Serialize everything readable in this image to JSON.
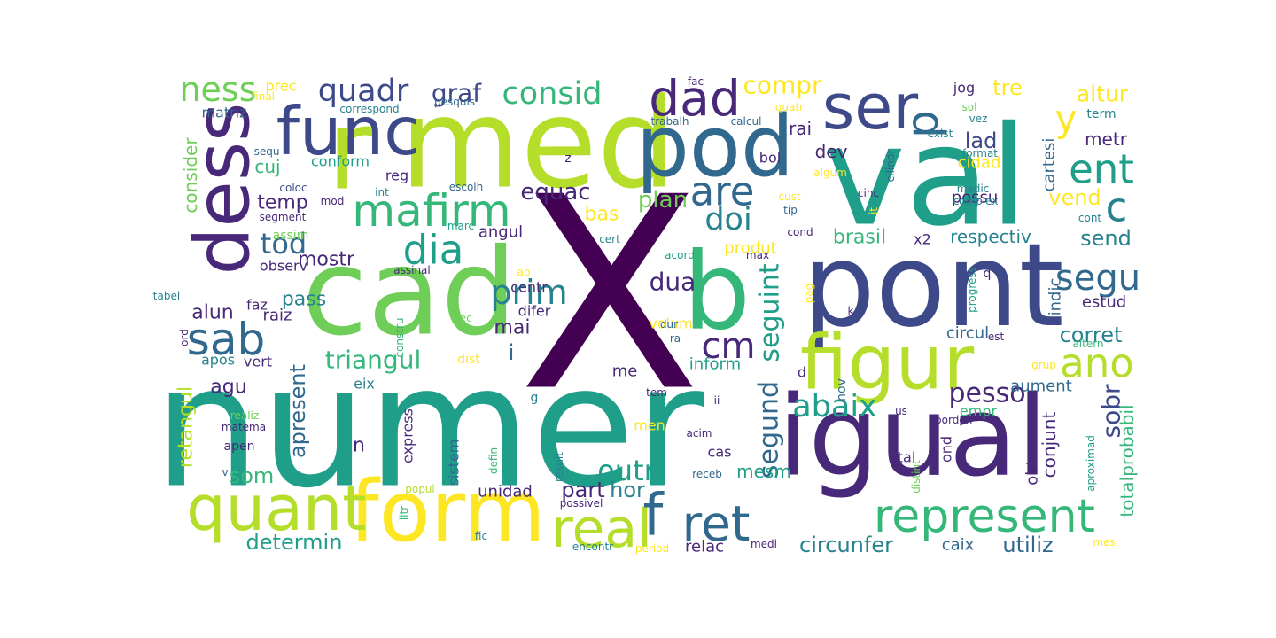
{
  "palette": {
    "purple": "#440154",
    "indigo": "#482878",
    "blue": "#3e4989",
    "steel": "#31688e",
    "teal": "#26828e",
    "green": "#1f9e89",
    "emerald": "#35b779",
    "lime": "#6ece58",
    "chartreuse": "#b5de2b",
    "yellow": "#fde725"
  },
  "words": [
    {
      "text": "X"
    },
    {
      "text": "numer"
    },
    {
      "text": "med"
    },
    {
      "text": "val"
    },
    {
      "text": "cad"
    },
    {
      "text": "pont"
    },
    {
      "text": "igual"
    },
    {
      "text": "pod"
    },
    {
      "text": "r"
    },
    {
      "text": "dess"
    },
    {
      "text": "form"
    },
    {
      "text": "b"
    },
    {
      "text": "func"
    },
    {
      "text": "quant"
    },
    {
      "text": "figur"
    },
    {
      "text": "ser"
    },
    {
      "text": "represent"
    },
    {
      "text": "mafirm"
    },
    {
      "text": "dad"
    },
    {
      "text": "real"
    },
    {
      "text": "ret"
    },
    {
      "text": "f"
    },
    {
      "text": "sab"
    },
    {
      "text": "are"
    },
    {
      "text": "ano"
    },
    {
      "text": "dia"
    },
    {
      "text": "cm"
    },
    {
      "text": "ent"
    },
    {
      "text": "p"
    },
    {
      "text": "segu"
    },
    {
      "text": "consid"
    },
    {
      "text": "prim"
    },
    {
      "text": "quadr"
    },
    {
      "text": "ness"
    },
    {
      "text": "doi"
    },
    {
      "text": "c"
    },
    {
      "text": "tod"
    },
    {
      "text": "y"
    },
    {
      "text": "abaix"
    },
    {
      "text": "triangul"
    },
    {
      "text": "graf"
    },
    {
      "text": "compr"
    },
    {
      "text": "altur"
    },
    {
      "text": "tre"
    },
    {
      "text": "pesso"
    },
    {
      "text": "seguint"
    },
    {
      "text": "segund"
    },
    {
      "text": "dua"
    },
    {
      "text": "equac"
    },
    {
      "text": "plan"
    },
    {
      "text": "corret"
    },
    {
      "text": "outr"
    },
    {
      "text": "determin"
    },
    {
      "text": "circunfer"
    },
    {
      "text": "utiliz"
    },
    {
      "text": "sobr"
    },
    {
      "text": "lad"
    },
    {
      "text": "metr"
    },
    {
      "text": "send"
    },
    {
      "text": "brasil"
    },
    {
      "text": "consider"
    },
    {
      "text": "apresent"
    },
    {
      "text": "retangul"
    },
    {
      "text": "part"
    },
    {
      "text": "hor"
    },
    {
      "text": "som"
    },
    {
      "text": "alun"
    },
    {
      "text": "pass"
    },
    {
      "text": "mostr"
    },
    {
      "text": "temp"
    },
    {
      "text": "bas"
    },
    {
      "text": "dev"
    },
    {
      "text": "respectiv"
    },
    {
      "text": "vend"
    },
    {
      "text": "mai"
    },
    {
      "text": "agu"
    },
    {
      "text": "cuj"
    },
    {
      "text": "conform"
    },
    {
      "text": "rai"
    },
    {
      "text": "totalprobabil"
    },
    {
      "text": "mesm"
    },
    {
      "text": "unidad"
    },
    {
      "text": "relac"
    },
    {
      "text": "caix"
    },
    {
      "text": "inform"
    },
    {
      "text": "n"
    },
    {
      "text": "i"
    },
    {
      "text": "angul"
    },
    {
      "text": "possu"
    },
    {
      "text": "cidad"
    },
    {
      "text": "cartesi"
    },
    {
      "text": "indic"
    },
    {
      "text": "estud"
    },
    {
      "text": "aument"
    },
    {
      "text": "conjunt"
    },
    {
      "text": "obt"
    },
    {
      "text": "produt"
    },
    {
      "text": "circul"
    },
    {
      "text": "volum"
    },
    {
      "text": "centr"
    },
    {
      "text": "difer"
    },
    {
      "text": "raiz"
    },
    {
      "text": "observ"
    },
    {
      "text": "sistem"
    },
    {
      "text": "express"
    },
    {
      "text": "eix"
    },
    {
      "text": "vert"
    },
    {
      "text": "apos"
    },
    {
      "text": "faz"
    },
    {
      "text": "cas"
    },
    {
      "text": "me"
    },
    {
      "text": "men"
    },
    {
      "text": "d"
    },
    {
      "text": "nov"
    },
    {
      "text": "tal"
    },
    {
      "text": "ond"
    },
    {
      "text": "empr"
    },
    {
      "text": "x2"
    },
    {
      "text": "matriz"
    },
    {
      "text": "reg"
    },
    {
      "text": "bol"
    },
    {
      "text": "jog"
    },
    {
      "text": "prec"
    },
    {
      "text": "apen"
    },
    {
      "text": "dist"
    },
    {
      "text": "g"
    },
    {
      "text": "assim"
    },
    {
      "text": "q"
    },
    {
      "text": "term"
    },
    {
      "text": "z"
    },
    {
      "text": "correspond"
    },
    {
      "text": "final"
    },
    {
      "text": "pesquis"
    },
    {
      "text": "fac"
    },
    {
      "text": "trabalh"
    },
    {
      "text": "calcul"
    },
    {
      "text": "quatr"
    },
    {
      "text": "algum"
    },
    {
      "text": "cilindr"
    },
    {
      "text": "exist"
    },
    {
      "text": "sol"
    },
    {
      "text": "vez"
    },
    {
      "text": "format"
    },
    {
      "text": "sequ"
    },
    {
      "text": "coloc"
    },
    {
      "text": "escolh"
    },
    {
      "text": "int"
    },
    {
      "text": "mod"
    },
    {
      "text": "segment"
    },
    {
      "text": "cust"
    },
    {
      "text": "tip"
    },
    {
      "text": "cinc"
    },
    {
      "text": "it"
    },
    {
      "text": "medic"
    },
    {
      "text": "complex"
    },
    {
      "text": "cont"
    },
    {
      "text": "marc"
    },
    {
      "text": "cert"
    },
    {
      "text": "cond"
    },
    {
      "text": "acord"
    },
    {
      "text": "max"
    },
    {
      "text": "assinal"
    },
    {
      "text": "tabel"
    },
    {
      "text": "ab"
    },
    {
      "text": "pag"
    },
    {
      "text": "k"
    },
    {
      "text": "progress"
    },
    {
      "text": "altern"
    },
    {
      "text": "ord"
    },
    {
      "text": "constru"
    },
    {
      "text": "pec"
    },
    {
      "text": "dur"
    },
    {
      "text": "ra"
    },
    {
      "text": "est"
    },
    {
      "text": "grup"
    },
    {
      "text": "tem"
    },
    {
      "text": "ii"
    },
    {
      "text": "us"
    },
    {
      "text": "coorden"
    },
    {
      "text": "realiz"
    },
    {
      "text": "matema"
    },
    {
      "text": "acim"
    },
    {
      "text": "receb"
    },
    {
      "text": "defin"
    },
    {
      "text": "result"
    },
    {
      "text": "distint"
    },
    {
      "text": "aproximad"
    },
    {
      "text": "popul"
    },
    {
      "text": "possivel"
    },
    {
      "text": "litr"
    },
    {
      "text": "fic"
    },
    {
      "text": "encontr"
    },
    {
      "text": "period"
    },
    {
      "text": "medi"
    },
    {
      "text": "mes"
    },
    {
      "text": "v"
    }
  ]
}
